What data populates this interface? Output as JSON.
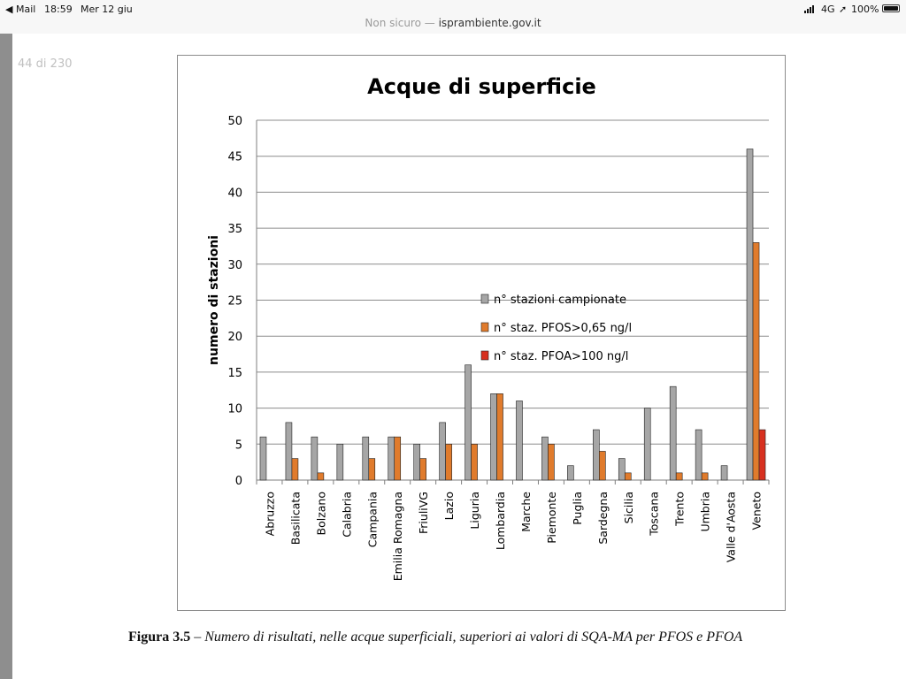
{
  "status_bar": {
    "back_app": "◀ Mail",
    "time": "18:59",
    "date": "Mer 12 giu",
    "network": "4G",
    "location_icon": "location-arrow-icon",
    "battery": "100%"
  },
  "browser": {
    "security": "Non sicuro —",
    "domain": "isprambiente.gov.it"
  },
  "pdf": {
    "page_counter": "44 di 230"
  },
  "caption": {
    "figure_number": "Figura 3.5",
    "text": " – Numero di risultati, nelle acque superficiali, superiori ai valori di SQA-MA per PFOS e PFOA"
  },
  "chart_data": {
    "type": "bar",
    "title": "Acque di superficie",
    "xlabel": "",
    "ylabel": "numero di stazioni",
    "ylim": [
      0,
      50
    ],
    "yticks": [
      0,
      5,
      10,
      15,
      20,
      25,
      30,
      35,
      40,
      45,
      50
    ],
    "grid": true,
    "legend_position": "center",
    "categories": [
      "Abruzzo",
      "Basilicata",
      "Bolzano",
      "Calabria",
      "Campania",
      "Emilia Romagna",
      "FriuliVG",
      "Lazio",
      "Liguria",
      "Lombardia",
      "Marche",
      "Piemonte",
      "Puglia",
      "Sardegna",
      "Sicilia",
      "Toscana",
      "Trento",
      "Umbria",
      "Valle d'Aosta",
      "Veneto"
    ],
    "series": [
      {
        "name": "n° stazioni campionate",
        "color": "#a6a6a6",
        "values": [
          6,
          8,
          6,
          5,
          6,
          6,
          5,
          8,
          16,
          12,
          11,
          6,
          2,
          7,
          3,
          10,
          13,
          7,
          2,
          46
        ]
      },
      {
        "name": "n° staz. PFOS>0,65 ng/l",
        "color": "#e07b2c",
        "values": [
          0,
          3,
          1,
          0,
          3,
          6,
          3,
          5,
          5,
          12,
          0,
          5,
          0,
          4,
          1,
          0,
          1,
          1,
          0,
          33
        ]
      },
      {
        "name": "n° staz. PFOA>100 ng/l",
        "color": "#d7301f",
        "values": [
          0,
          0,
          0,
          0,
          0,
          0,
          0,
          0,
          0,
          0,
          0,
          0,
          0,
          0,
          0,
          0,
          0,
          0,
          0,
          7
        ]
      }
    ]
  }
}
